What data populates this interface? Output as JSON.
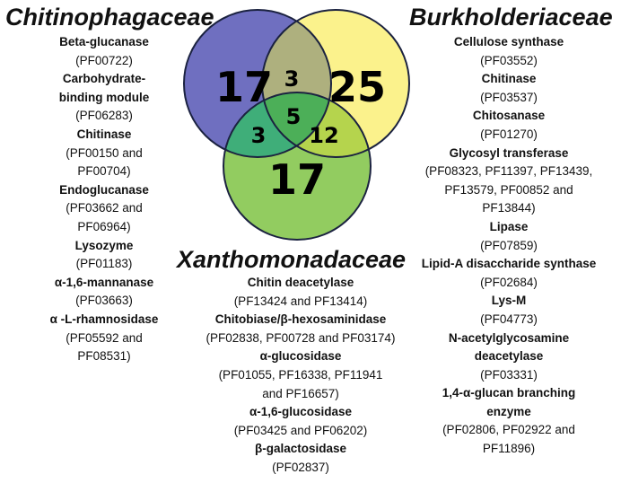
{
  "sets": {
    "a": {
      "title": "Chitinophagaceae",
      "color": "#6f6fc0"
    },
    "b": {
      "title": "Burkholderiaceae",
      "color": "#fbf28c"
    },
    "c": {
      "title": "Xanthomonadaceae",
      "color": "#92cc60"
    }
  },
  "counts": {
    "a_only": "17",
    "b_only": "25",
    "c_only": "17",
    "ab": "3",
    "ac": "3",
    "bc": "12",
    "abc": "5"
  },
  "region_colors": {
    "ab": "#aeb07e",
    "ac": "#3fae79",
    "bc": "#b5d44d",
    "abc": "#4caf58",
    "outline": "#1b2240"
  },
  "lists": {
    "a": [
      [
        "Beta-glucanase",
        "b"
      ],
      [
        "(PF00722)",
        "n"
      ],
      [
        "Carbohydrate-",
        "b"
      ],
      [
        "binding module",
        "b"
      ],
      [
        "(PF06283)",
        "n"
      ],
      [
        "Chitinase",
        "b"
      ],
      [
        "(PF00150 and",
        "n"
      ],
      [
        "PF00704)",
        "n"
      ],
      [
        "Endoglucanase",
        "b"
      ],
      [
        "(PF03662 and",
        "n"
      ],
      [
        "PF06964)",
        "n"
      ],
      [
        "Lysozyme",
        "b"
      ],
      [
        "(PF01183)",
        "n"
      ],
      [
        "α-1,6-mannanase",
        "b"
      ],
      [
        "(PF03663)",
        "n"
      ],
      [
        "α -L-rhamnosidase",
        "b"
      ],
      [
        "(PF05592 and",
        "n"
      ],
      [
        "PF08531)",
        "n"
      ]
    ],
    "b": [
      [
        "Cellulose synthase",
        "b"
      ],
      [
        "(PF03552)",
        "n"
      ],
      [
        "Chitinase",
        "b"
      ],
      [
        "(PF03537)",
        "n"
      ],
      [
        "Chitosanase",
        "b"
      ],
      [
        "(PF01270)",
        "n"
      ],
      [
        "Glycosyl transferase",
        "b"
      ],
      [
        "(PF08323, PF11397, PF13439,",
        "n"
      ],
      [
        "PF13579, PF00852 and",
        "n"
      ],
      [
        "PF13844)",
        "n"
      ],
      [
        "Lipase",
        "b"
      ],
      [
        "(PF07859)",
        "n"
      ],
      [
        "Lipid-A disaccharide synthase",
        "b"
      ],
      [
        "(PF02684)",
        "n"
      ],
      [
        "Lys-M",
        "b"
      ],
      [
        "(PF04773)",
        "n"
      ],
      [
        "N-acetylglycosamine",
        "b"
      ],
      [
        "deacetylase",
        "b"
      ],
      [
        "(PF03331)",
        "n"
      ],
      [
        "1,4-α-glucan branching",
        "b"
      ],
      [
        "enzyme",
        "b"
      ],
      [
        "(PF02806, PF02922 and",
        "n"
      ],
      [
        "PF11896)",
        "n"
      ]
    ],
    "c": [
      [
        "Chitin deacetylase",
        "b"
      ],
      [
        "(PF13424 and PF13414)",
        "n"
      ],
      [
        "Chitobiase/β-hexosaminidase",
        "b"
      ],
      [
        "(PF02838, PF00728 and PF03174)",
        "n"
      ],
      [
        "α-glucosidase",
        "b"
      ],
      [
        "(PF01055, PF16338, PF11941",
        "n"
      ],
      [
        "and PF16657)",
        "n"
      ],
      [
        "α-1,6-glucosidase",
        "b"
      ],
      [
        "(PF03425 and PF06202)",
        "n"
      ],
      [
        "β-galactosidase",
        "b"
      ],
      [
        "(PF02837)",
        "n"
      ]
    ]
  }
}
